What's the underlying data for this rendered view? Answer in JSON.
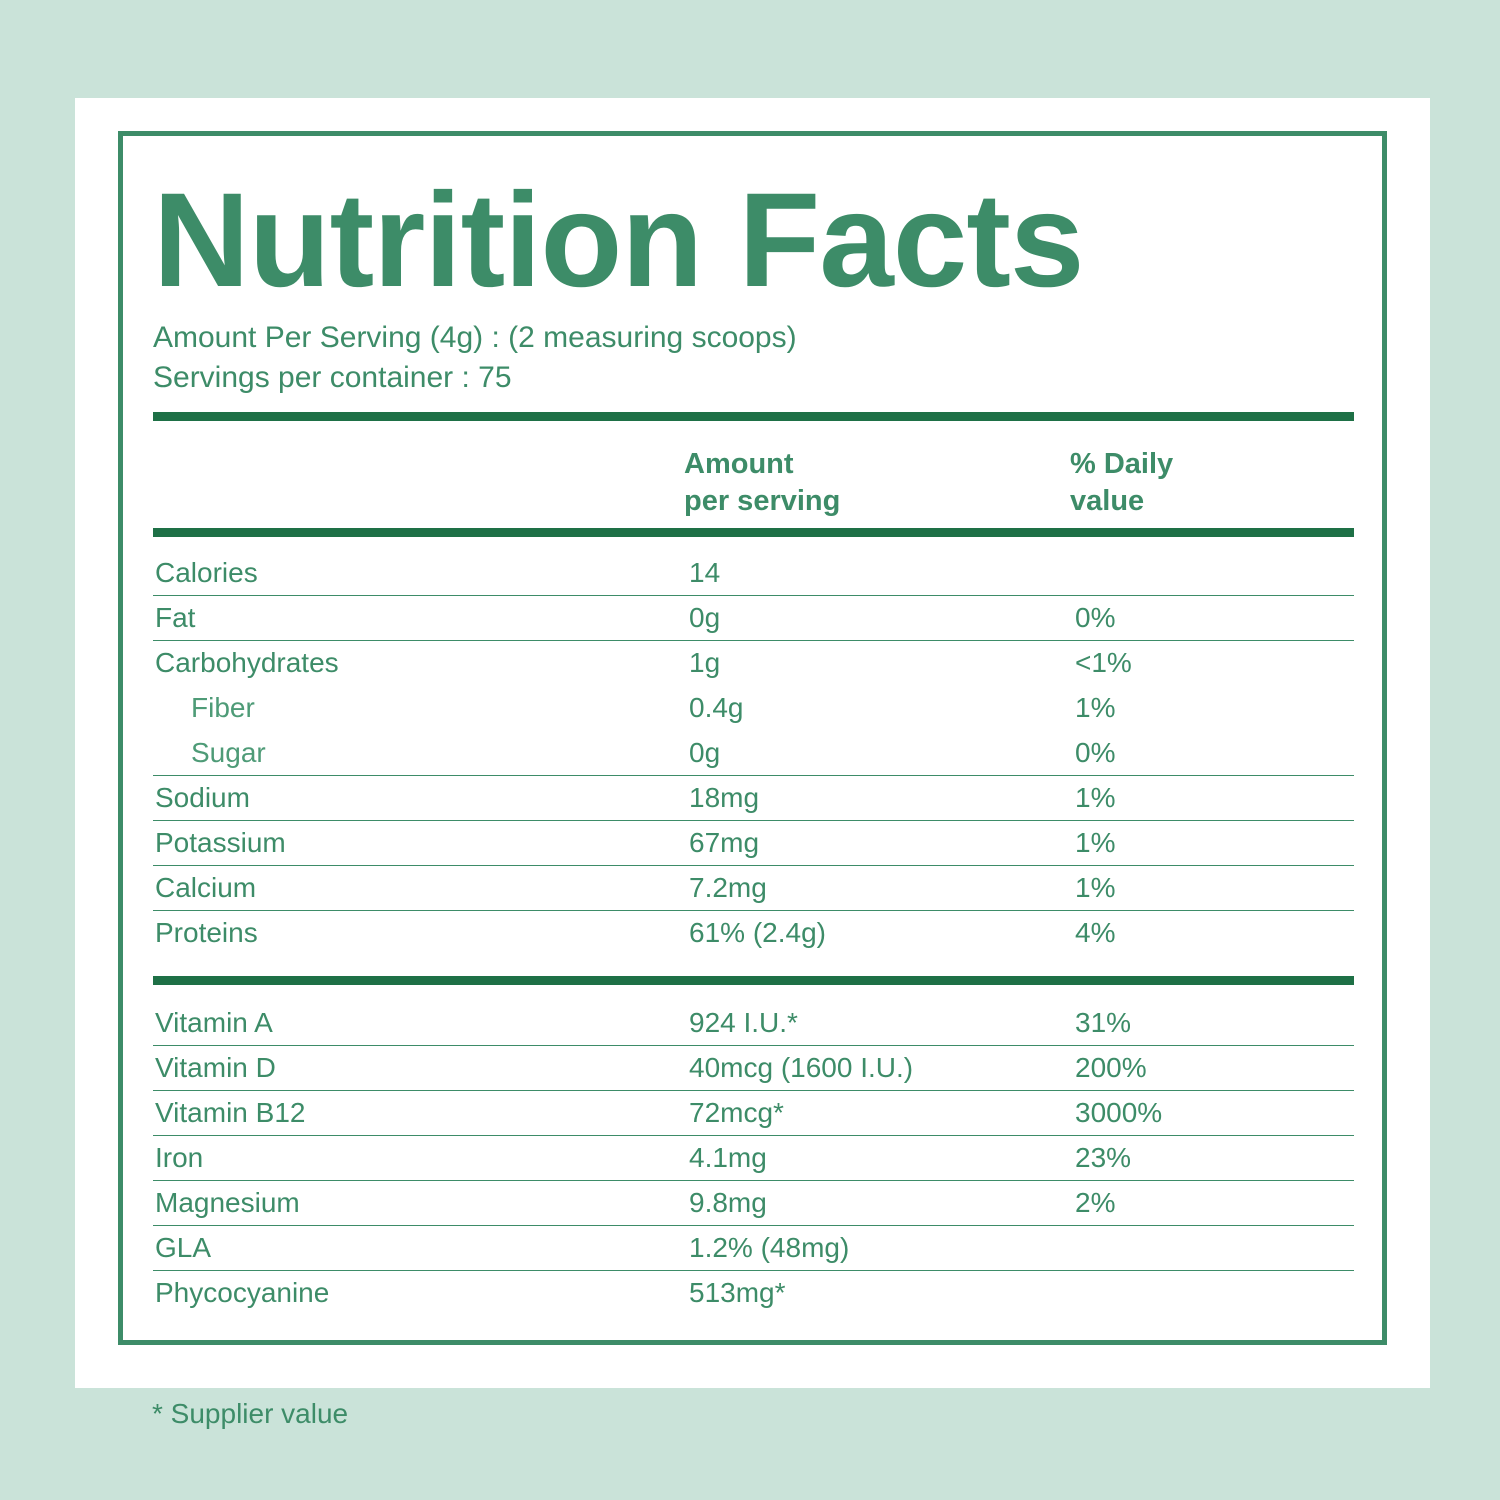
{
  "title": "Nutrition Facts",
  "serving": {
    "amount": "Amount Per Serving (4g) : (2 measuring scoops)",
    "servings": "Servings per container : 75"
  },
  "columns": {
    "amount": "Amount\nper serving",
    "daily": "% Daily\nvalue"
  },
  "nutrients": [
    {
      "name": "Calories",
      "amount": "14",
      "dv": ""
    },
    {
      "name": "Fat",
      "amount": "0g",
      "dv": "0%"
    },
    {
      "name": "Carbohydrates",
      "amount": "1g",
      "dv": "<1%"
    },
    {
      "name": "Fiber",
      "amount": "0.4g",
      "dv": "1%"
    },
    {
      "name": "Sugar",
      "amount": "0g",
      "dv": "0%"
    },
    {
      "name": "Sodium",
      "amount": "18mg",
      "dv": "1%"
    },
    {
      "name": "Potassium",
      "amount": "67mg",
      "dv": "1%"
    },
    {
      "name": "Calcium",
      "amount": "7.2mg",
      "dv": "1%"
    },
    {
      "name": "Proteins",
      "amount": "61% (2.4g)",
      "dv": "4%"
    }
  ],
  "vitamins": [
    {
      "name": "Vitamin A",
      "amount": "924 I.U.*",
      "dv": "31%"
    },
    {
      "name": "Vitamin D",
      "amount": "40mcg (1600 I.U.)",
      "dv": "200%"
    },
    {
      "name": "Vitamin B12",
      "amount": "72mcg*",
      "dv": "3000%"
    },
    {
      "name": "Iron",
      "amount": "4.1mg",
      "dv": "23%"
    },
    {
      "name": "Magnesium",
      "amount": "9.8mg",
      "dv": "2%"
    },
    {
      "name": "GLA",
      "amount": "1.2% (48mg)",
      "dv": ""
    },
    {
      "name": "Phycocyanine",
      "amount": "513mg*",
      "dv": ""
    }
  ],
  "footnote": "* Supplier value",
  "colors": {
    "background": "#cae3d9",
    "card": "#ffffff",
    "green": "#3d8c68",
    "rule": "#1e7046"
  }
}
